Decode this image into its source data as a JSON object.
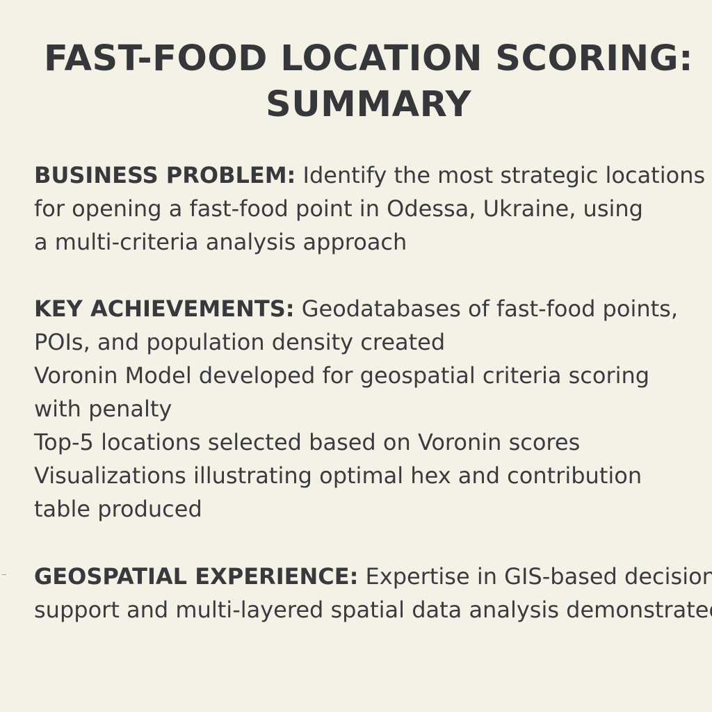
{
  "title": {
    "line1": "FAST-FOOD LOCATION SCORING:",
    "line2": "SUMMARY"
  },
  "sections": {
    "problem": {
      "label": "BUSINESS PROBLEM:",
      "lines": [
        " Identify the most strategic locations",
        "for opening a fast-food point in Odessa, Ukraine, using",
        "a multi-criteria analysis approach"
      ]
    },
    "achievements": {
      "label": "KEY ACHIEVEMENTS:",
      "lines": [
        " Geodatabases of fast-food points,",
        "POIs, and population density created",
        "Voronin Model developed for geospatial criteria scoring",
        "with penalty",
        "Top-5 locations selected based on Voronin scores",
        "Visualizations illustrating optimal hex and contribution",
        "table produced"
      ]
    },
    "experience": {
      "label": "GEOSPATIAL EXPERIENCE:",
      "lines": [
        " Expertise in GIS-based decision",
        "support and multi-layered spatial data analysis demonstrated"
      ]
    }
  }
}
